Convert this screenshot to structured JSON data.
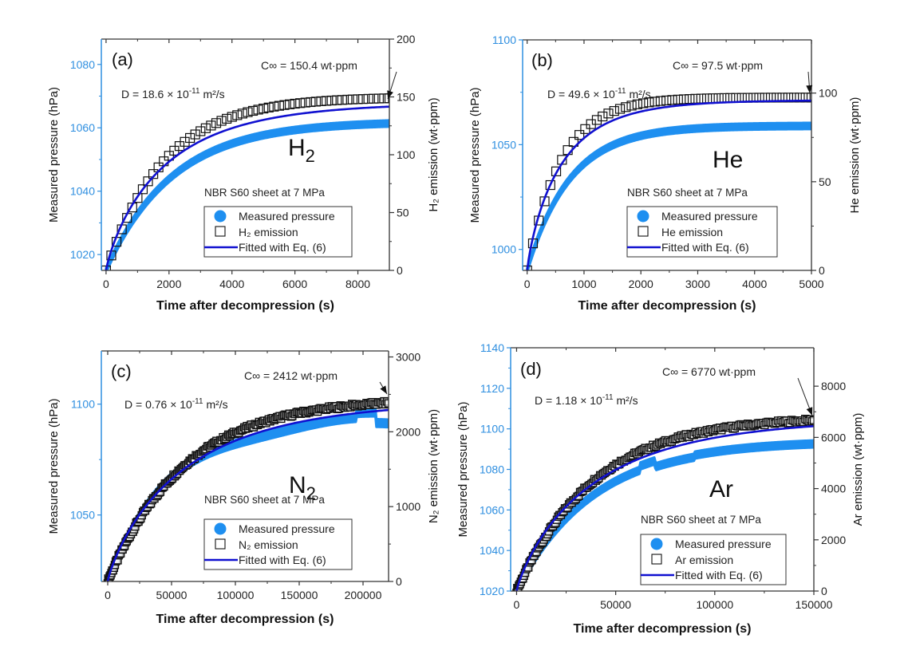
{
  "colors": {
    "measured": "#1e8ff0",
    "emission": "#111111",
    "fit": "#1010d0",
    "left_axis": "#2f8fe0",
    "axis": "#333333"
  },
  "chart_data": [
    {
      "type": "scatter",
      "panel": "(a)",
      "gas": "H",
      "gas_sub": "2",
      "xlabel": "Time after decompression (s)",
      "ylabel_left": "Measured pressure (hPa)",
      "ylabel_right": "H₂ emission (wt·ppm)",
      "xlim": [
        -150,
        9000
      ],
      "ylim_left": [
        1015,
        1088
      ],
      "ylim_right": [
        0,
        200
      ],
      "xticks": [
        0,
        2000,
        4000,
        6000,
        8000
      ],
      "yticks_left": [
        1020,
        1040,
        1060,
        1080
      ],
      "yticks_right": [
        0,
        50,
        100,
        150,
        200
      ],
      "D_text": "D = 18.6 × 10",
      "D_exp": "-11",
      "D_unit": " m²/s",
      "C_text": "C∞ = 150.4 wt·ppm",
      "C_inf": 150.4,
      "condition": "NBR S60 sheet at 7 MPa",
      "legend": [
        "Measured pressure",
        "H₂ emission",
        "Fitted with Eq. (6)"
      ],
      "legend_position": "bottom-right",
      "fit_tau": 1900,
      "fit_plateau": 145,
      "emission_plateau": 150,
      "emission_tau": 1850,
      "measured": {
        "start": 1015,
        "plateau": 1062,
        "tau": 2100,
        "band_hpa": 2.0
      },
      "emission_markers": 55
    },
    {
      "type": "scatter",
      "panel": "(b)",
      "gas": "He",
      "gas_sub": "",
      "xlabel": "Time after decompression (s)",
      "ylabel_left": "Measured pressure (hPa)",
      "ylabel_right": "He emission (wt·ppm)",
      "xlim": [
        -80,
        5000
      ],
      "ylim_left": [
        990,
        1100
      ],
      "ylim_right": [
        0,
        130
      ],
      "xticks": [
        0,
        1000,
        2000,
        3000,
        4000,
        5000
      ],
      "yticks_left": [
        1000,
        1050,
        1100
      ],
      "yticks_right": [
        0,
        50,
        100
      ],
      "D_text": "D = 49.6 × 10",
      "D_exp": "-11",
      "D_unit": " m²/s",
      "C_text": "C∞ = 97.5 wt·ppm",
      "C_inf": 97.5,
      "condition": "NBR S60 sheet at 7 MPa",
      "legend": [
        "Measured pressure",
        "He emission",
        "Fitted with Eq. (6)"
      ],
      "legend_position": "bottom-right",
      "fit_tau": 620,
      "fit_plateau": 96,
      "emission_plateau": 97.5,
      "emission_tau": 600,
      "measured": {
        "start": 990,
        "plateau": 1059,
        "tau": 750,
        "band_hpa": 3.0
      },
      "emission_markers": 50
    },
    {
      "type": "scatter",
      "panel": "(c)",
      "gas": "N",
      "gas_sub": "2",
      "xlabel": "Time after decompression (s)",
      "ylabel_left": "Measured pressure (hPa)",
      "ylabel_right": "N₂ emission (wt·ppm)",
      "xlim": [
        -5000,
        220000
      ],
      "ylim_left": [
        1020,
        1124
      ],
      "ylim_right": [
        0,
        3080
      ],
      "xticks": [
        0,
        50000,
        100000,
        150000,
        200000
      ],
      "yticks_left": [
        1050,
        1100
      ],
      "yticks_right": [
        0,
        1000,
        2000,
        3000
      ],
      "D_text": "D = 0.76 × 10",
      "D_exp": "-11",
      "D_unit": " m²/s",
      "C_text": "C∞ = 2412 wt·ppm",
      "C_inf": 2412,
      "condition": "NBR S60 sheet at 7 MPa",
      "legend": [
        "Measured pressure",
        "N₂ emission",
        "Fitted with Eq. (6)"
      ],
      "legend_position": "bottom-right",
      "fit_tau": 62000,
      "fit_plateau": 2420,
      "emission_plateau": 2450,
      "emission_tau": 60000,
      "measured": {
        "start": 1020,
        "plateau": 1094,
        "tau": 52000,
        "band_hpa": 3.5
      },
      "emission_markers": 220
    },
    {
      "type": "scatter",
      "panel": "(d)",
      "gas": "Ar",
      "gas_sub": "",
      "xlabel": "Time after decompression (s)",
      "ylabel_left": "Measured pressure (hPa)",
      "ylabel_right": "Ar emission (wt·ppm)",
      "xlim": [
        -3000,
        150000
      ],
      "ylim_left": [
        1020,
        1140
      ],
      "ylim_right": [
        0,
        9500
      ],
      "xticks": [
        0,
        50000,
        100000,
        150000
      ],
      "yticks_left": [
        1020,
        1040,
        1060,
        1080,
        1100,
        1120,
        1140
      ],
      "yticks_right": [
        0,
        2000,
        4000,
        6000,
        8000
      ],
      "D_text": "D = 1.18 × 10",
      "D_exp": "-11",
      "D_unit": " m²/s",
      "C_text": "C∞ = 6770 wt·ppm",
      "C_inf": 6770,
      "condition": "NBR S60 sheet at 7 MPa",
      "legend": [
        "Measured pressure",
        "Ar emission",
        "Fitted with Eq. (6)"
      ],
      "legend_position": "bottom-right",
      "fit_tau": 40000,
      "fit_plateau": 6750,
      "emission_plateau": 6820,
      "emission_tau": 39000,
      "measured": {
        "start": 1020,
        "plateau": 1094,
        "tau": 38000,
        "band_hpa": 3.5
      },
      "emission_markers": 200
    }
  ]
}
